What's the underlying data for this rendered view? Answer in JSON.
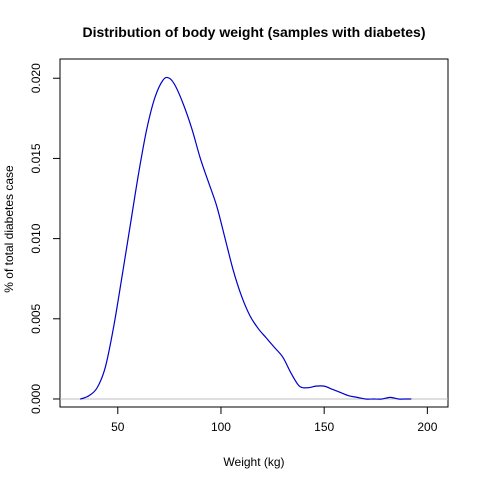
{
  "chart_data": {
    "type": "line",
    "title": "Distribution of body weight (samples with diabetes)",
    "xlabel": "Weight (kg)",
    "ylabel": "% of total diabetes case",
    "xlim": [
      22,
      210
    ],
    "ylim": [
      -0.0005,
      0.0212
    ],
    "x_ticks": [
      50,
      100,
      150,
      200
    ],
    "y_ticks": [
      0.0,
      0.005,
      0.01,
      0.015,
      0.02
    ],
    "x_tick_labels": [
      "50",
      "100",
      "150",
      "200"
    ],
    "y_tick_labels": [
      "0.000",
      "0.005",
      "0.010",
      "0.015",
      "0.020"
    ],
    "grid": false,
    "baseline": 0,
    "colors": {
      "series": "#0000cc",
      "baseline": "#bdbdbd",
      "axes": "#000000"
    },
    "series": [
      {
        "x": [
          32,
          36,
          40,
          44,
          48,
          52,
          56,
          60,
          64,
          68,
          72,
          75,
          78,
          82,
          86,
          90,
          94,
          98,
          102,
          106,
          110,
          114,
          118,
          122,
          126,
          130,
          134,
          138,
          142,
          146,
          150,
          154,
          158,
          162,
          166,
          170,
          174,
          178,
          182,
          186,
          190,
          192
        ],
        "y": [
          0.0,
          0.0002,
          0.0007,
          0.002,
          0.0045,
          0.0076,
          0.0108,
          0.014,
          0.0168,
          0.0188,
          0.0199,
          0.02,
          0.0195,
          0.0183,
          0.0168,
          0.015,
          0.0135,
          0.012,
          0.01,
          0.008,
          0.0064,
          0.0052,
          0.0044,
          0.0038,
          0.0032,
          0.0026,
          0.0016,
          0.0008,
          0.0007,
          0.0008,
          0.0008,
          0.0006,
          0.0004,
          0.0002,
          0.0001,
          0.0,
          0.0,
          0.0,
          0.0001,
          0.0,
          0.0,
          0.0
        ]
      }
    ]
  }
}
